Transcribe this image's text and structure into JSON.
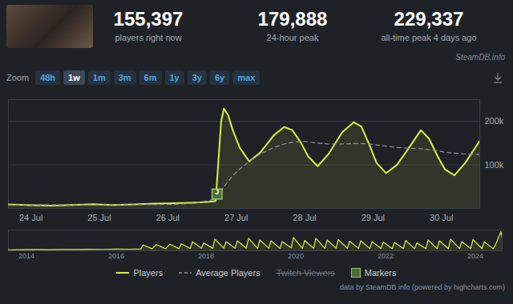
{
  "header": {
    "stats": [
      {
        "value": "155,397",
        "label": "players right now"
      },
      {
        "value": "179,888",
        "label": "24-hour peak"
      },
      {
        "value": "229,337",
        "label": "all-time peak 4 days ago"
      }
    ],
    "watermark": "SteamDB.info"
  },
  "zoom": {
    "label": "Zoom",
    "buttons": [
      "48h",
      "1w",
      "1m",
      "3m",
      "6m",
      "1y",
      "3y",
      "6y",
      "max"
    ],
    "active": "1w"
  },
  "chart_data": [
    {
      "type": "line",
      "x": [
        23.67,
        24.0,
        24.3,
        24.6,
        24.9,
        25.2,
        25.5,
        25.8,
        26.1,
        26.4,
        26.6,
        26.7,
        26.74,
        26.78,
        26.82,
        26.88,
        26.95,
        27.05,
        27.19,
        27.35,
        27.55,
        27.7,
        27.82,
        27.95,
        28.05,
        28.19,
        28.35,
        28.55,
        28.72,
        28.83,
        28.95,
        29.05,
        29.19,
        29.35,
        29.55,
        29.7,
        29.82,
        29.95,
        30.05,
        30.19,
        30.35,
        30.56
      ],
      "series": [
        {
          "name": "Players",
          "type": "area",
          "color": "#d6f043",
          "values": [
            9000,
            7500,
            6500,
            8000,
            9500,
            8000,
            9000,
            11000,
            12000,
            13500,
            15000,
            17000,
            110000,
            200000,
            229337,
            215000,
            180000,
            140000,
            108000,
            128000,
            168000,
            187000,
            180000,
            150000,
            120000,
            97000,
            125000,
            175000,
            198000,
            188000,
            145000,
            105000,
            81000,
            100000,
            145000,
            179888,
            160000,
            118000,
            90000,
            76000,
            105000,
            155397
          ]
        },
        {
          "name": "Average Players",
          "color": "#8c949c",
          "line_style": "dashed",
          "values": [
            8000,
            8000,
            8000,
            8000,
            8200,
            8400,
            8600,
            9000,
            9500,
            12000,
            18000,
            22000,
            28000,
            38000,
            50000,
            62000,
            75000,
            90000,
            108000,
            125000,
            140000,
            148000,
            152000,
            154000,
            153000,
            150000,
            148000,
            148000,
            149000,
            149000,
            148000,
            146000,
            143000,
            140000,
            138000,
            137000,
            135000,
            132000,
            129000,
            127000,
            125000,
            124000
          ]
        }
      ],
      "hidden_series": [
        {
          "name": "Twitch Viewers"
        }
      ],
      "markers": {
        "name": "Markers",
        "color": "#4e6b34",
        "items": [
          {
            "x": 26.72,
            "label": "J"
          }
        ]
      },
      "xlim": [
        23.67,
        30.56
      ],
      "xticks": [
        {
          "value": 24,
          "label": "24 Jul"
        },
        {
          "value": 25,
          "label": "25 Jul"
        },
        {
          "value": 26,
          "label": "26 Jul"
        },
        {
          "value": 27,
          "label": "27 Jul"
        },
        {
          "value": 28,
          "label": "28 Jul"
        },
        {
          "value": 29,
          "label": "29 Jul"
        },
        {
          "value": 30,
          "label": "30 Jul"
        }
      ],
      "ylim": [
        0,
        250000
      ],
      "yticks": [
        {
          "value": 100000,
          "label": "100k"
        },
        {
          "value": 200000,
          "label": "200k"
        }
      ],
      "grid": true,
      "legend": "bottom"
    },
    {
      "type": "area",
      "x": [
        2013.6,
        2013.9,
        2014.2,
        2014.5,
        2014.8,
        2015.1,
        2015.4,
        2015.7,
        2016.0,
        2016.3,
        2016.55,
        2016.6,
        2016.8,
        2016.9,
        2017.1,
        2017.2,
        2017.4,
        2017.45,
        2017.65,
        2017.7,
        2017.9,
        2017.95,
        2018.15,
        2018.2,
        2018.4,
        2018.45,
        2018.65,
        2018.7,
        2018.9,
        2018.95,
        2019.15,
        2019.2,
        2019.4,
        2019.45,
        2019.65,
        2019.7,
        2019.9,
        2019.95,
        2020.15,
        2020.2,
        2020.4,
        2020.45,
        2020.65,
        2020.7,
        2020.9,
        2020.95,
        2021.15,
        2021.2,
        2021.4,
        2021.45,
        2021.65,
        2021.7,
        2021.9,
        2021.95,
        2022.15,
        2022.2,
        2022.4,
        2022.45,
        2022.65,
        2022.7,
        2022.9,
        2022.95,
        2023.15,
        2023.2,
        2023.4,
        2023.45,
        2023.65,
        2023.7,
        2023.9,
        2023.95,
        2024.15,
        2024.2,
        2024.4,
        2024.45,
        2024.57,
        2024.6
      ],
      "series": [
        {
          "color": "#d6f043",
          "values": [
            12000,
            14000,
            15000,
            13000,
            16000,
            15000,
            18000,
            17000,
            20000,
            19000,
            22000,
            70000,
            25000,
            75000,
            25000,
            80000,
            25000,
            85000,
            28000,
            110000,
            30000,
            95000,
            30000,
            140000,
            32000,
            110000,
            30000,
            120000,
            32000,
            150000,
            30000,
            130000,
            32000,
            120000,
            30000,
            110000,
            35000,
            160000,
            30000,
            125000,
            32000,
            150000,
            30000,
            130000,
            32000,
            135000,
            30000,
            115000,
            30000,
            120000,
            28000,
            110000,
            28000,
            105000,
            26000,
            100000,
            27000,
            125000,
            25000,
            95000,
            26000,
            130000,
            25000,
            120000,
            26000,
            140000,
            25000,
            110000,
            27000,
            135000,
            26000,
            110000,
            25000,
            70000,
            229337,
            155397
          ]
        }
      ],
      "xlim": [
        2013.6,
        2024.6
      ],
      "xticks": [
        2014,
        2016,
        2018,
        2020,
        2022,
        2024
      ],
      "ylim": [
        0,
        250000
      ],
      "tick_labels": "x"
    }
  ],
  "credit": "data by SteamDB.info (powered by highcharts.com)"
}
